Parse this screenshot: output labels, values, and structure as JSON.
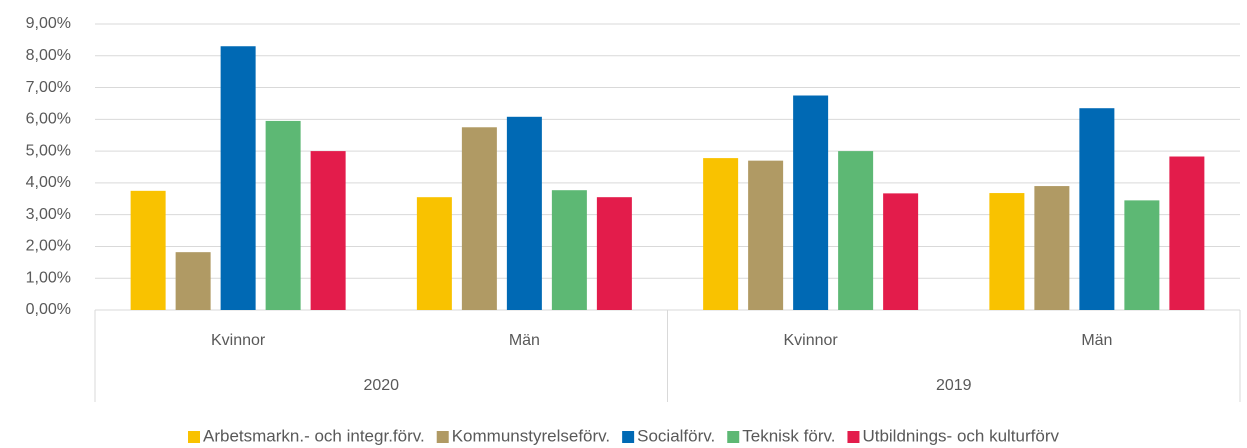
{
  "chart_data": {
    "type": "bar",
    "categories": [
      "Kvinnor",
      "Män",
      "Kvinnor",
      "Män"
    ],
    "category_groups": [
      "2020",
      "2019"
    ],
    "series": [
      {
        "name": "Arbetsmarkn.- och integr.förv.",
        "color": "#f9c200",
        "values": [
          3.75,
          3.55,
          4.78,
          3.68
        ]
      },
      {
        "name": "Kommunstyrelseförv.",
        "color": "#b09a64",
        "values": [
          1.82,
          5.75,
          4.7,
          3.9
        ]
      },
      {
        "name": "Socialförv.",
        "color": "#0069b4",
        "values": [
          8.3,
          6.08,
          6.75,
          6.35
        ]
      },
      {
        "name": "Teknisk förv.",
        "color": "#5db874",
        "values": [
          5.95,
          3.77,
          5.0,
          3.45
        ]
      },
      {
        "name": "Utbildnings- och kulturförv",
        "color": "#e31c4b",
        "values": [
          5.0,
          3.55,
          3.67,
          4.83
        ]
      }
    ],
    "ylim": [
      0,
      9
    ],
    "yticks": [
      {
        "value": 0,
        "label": "0,00%"
      },
      {
        "value": 1,
        "label": "1,00%"
      },
      {
        "value": 2,
        "label": "2,00%"
      },
      {
        "value": 3,
        "label": "3,00%"
      },
      {
        "value": 4,
        "label": "4,00%"
      },
      {
        "value": 5,
        "label": "5,00%"
      },
      {
        "value": 6,
        "label": "6,00%"
      },
      {
        "value": 7,
        "label": "7,00%"
      },
      {
        "value": 8,
        "label": "8,00%"
      },
      {
        "value": 9,
        "label": "9,00%"
      }
    ],
    "grid": true,
    "legend": "bottom"
  }
}
